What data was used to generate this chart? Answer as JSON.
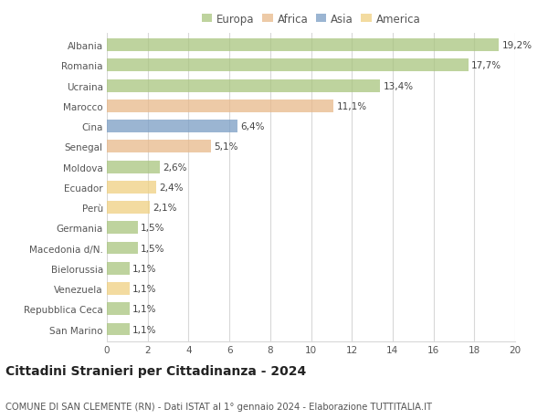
{
  "categories": [
    "Albania",
    "Romania",
    "Ucraina",
    "Marocco",
    "Cina",
    "Senegal",
    "Moldova",
    "Ecuador",
    "Perù",
    "Germania",
    "Macedonia d/N.",
    "Bielorussia",
    "Venezuela",
    "Repubblica Ceca",
    "San Marino"
  ],
  "values": [
    19.2,
    17.7,
    13.4,
    11.1,
    6.4,
    5.1,
    2.6,
    2.4,
    2.1,
    1.5,
    1.5,
    1.1,
    1.1,
    1.1,
    1.1
  ],
  "labels": [
    "19,2%",
    "17,7%",
    "13,4%",
    "11,1%",
    "6,4%",
    "5,1%",
    "2,6%",
    "2,4%",
    "2,1%",
    "1,5%",
    "1,5%",
    "1,1%",
    "1,1%",
    "1,1%",
    "1,1%"
  ],
  "colors": [
    "#a8c57e",
    "#a8c57e",
    "#a8c57e",
    "#e8b98a",
    "#7a9dc4",
    "#e8b98a",
    "#a8c57e",
    "#f0d080",
    "#f0d080",
    "#a8c57e",
    "#a8c57e",
    "#a8c57e",
    "#f0d080",
    "#a8c57e",
    "#a8c57e"
  ],
  "legend_labels": [
    "Europa",
    "Africa",
    "Asia",
    "America"
  ],
  "legend_colors": [
    "#a8c57e",
    "#e8b98a",
    "#7a9dc4",
    "#f0d080"
  ],
  "xlim": [
    0,
    20
  ],
  "xticks": [
    0,
    2,
    4,
    6,
    8,
    10,
    12,
    14,
    16,
    18,
    20
  ],
  "title": "Cittadini Stranieri per Cittadinanza - 2024",
  "subtitle": "COMUNE DI SAN CLEMENTE (RN) - Dati ISTAT al 1° gennaio 2024 - Elaborazione TUTTITALIA.IT",
  "background_color": "#ffffff",
  "grid_color": "#d8d8d8",
  "bar_height": 0.62,
  "label_fontsize": 7.5,
  "tick_fontsize": 7.5,
  "title_fontsize": 10,
  "subtitle_fontsize": 7.2,
  "alpha": 0.75
}
